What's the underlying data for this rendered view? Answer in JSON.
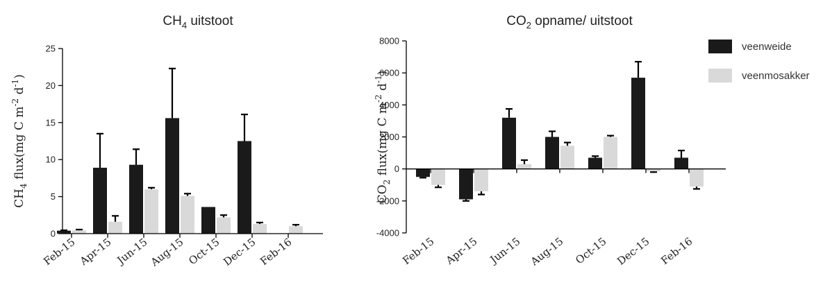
{
  "chart_data": [
    {
      "type": "bar",
      "title": {
        "main": "CH",
        "sub": "4",
        "rest": " uitstoot"
      },
      "ylabel": {
        "a": "CH",
        "a_sub": "4",
        "b": " flux(mg C m",
        "b_sup": "-2",
        "c": " d",
        "c_sup": "-1",
        "d": ")"
      },
      "categories": [
        "Feb-15",
        "Apr-15",
        "Jun-15",
        "Aug-15",
        "Oct-15",
        "Dec-15",
        "Feb-16"
      ],
      "ylim": [
        0,
        25
      ],
      "yticks": [
        0,
        5,
        10,
        15,
        20,
        25
      ],
      "series": [
        {
          "name": "veenweide",
          "color": "#1a1a1a",
          "values": [
            0.4,
            8.9,
            9.3,
            15.6,
            3.6,
            12.5,
            null
          ],
          "errors": [
            0.05,
            4.6,
            2.1,
            6.7,
            0.0,
            3.6,
            null
          ]
        },
        {
          "name": "veenmosakker",
          "color": "#d9d9d9",
          "values": [
            0.45,
            1.6,
            6.0,
            5.1,
            2.2,
            1.3,
            1.0
          ],
          "errors": [
            0.1,
            0.8,
            0.2,
            0.3,
            0.3,
            0.2,
            0.2
          ]
        }
      ]
    },
    {
      "type": "bar",
      "title": {
        "main": "CO",
        "sub": "2",
        "rest": " opname/ uitstoot"
      },
      "ylabel": {
        "a": "CO",
        "a_sub": "2",
        "b": " flux(mg C m",
        "b_sup": "-2",
        "c": " d",
        "c_sup": "-1",
        "d": ")"
      },
      "categories": [
        "Feb-15",
        "Apr-15",
        "Jun-15",
        "Aug-15",
        "Oct-15",
        "Dec-15",
        "Feb-16"
      ],
      "ylim": [
        -4000,
        8000
      ],
      "yticks": [
        -4000,
        -2000,
        0,
        2000,
        4000,
        6000,
        8000
      ],
      "legend_position": "top-right",
      "series": [
        {
          "name": "veenweide",
          "color": "#1a1a1a",
          "values": [
            -500,
            -1900,
            3200,
            2000,
            700,
            5700,
            700
          ],
          "errors": [
            50,
            100,
            550,
            350,
            100,
            1000,
            450
          ]
        },
        {
          "name": "veenmosakker",
          "color": "#d9d9d9",
          "values": [
            -1000,
            -1400,
            300,
            1450,
            2000,
            -150,
            -1100
          ],
          "errors": [
            150,
            200,
            250,
            200,
            80,
            50,
            150
          ]
        }
      ]
    }
  ]
}
